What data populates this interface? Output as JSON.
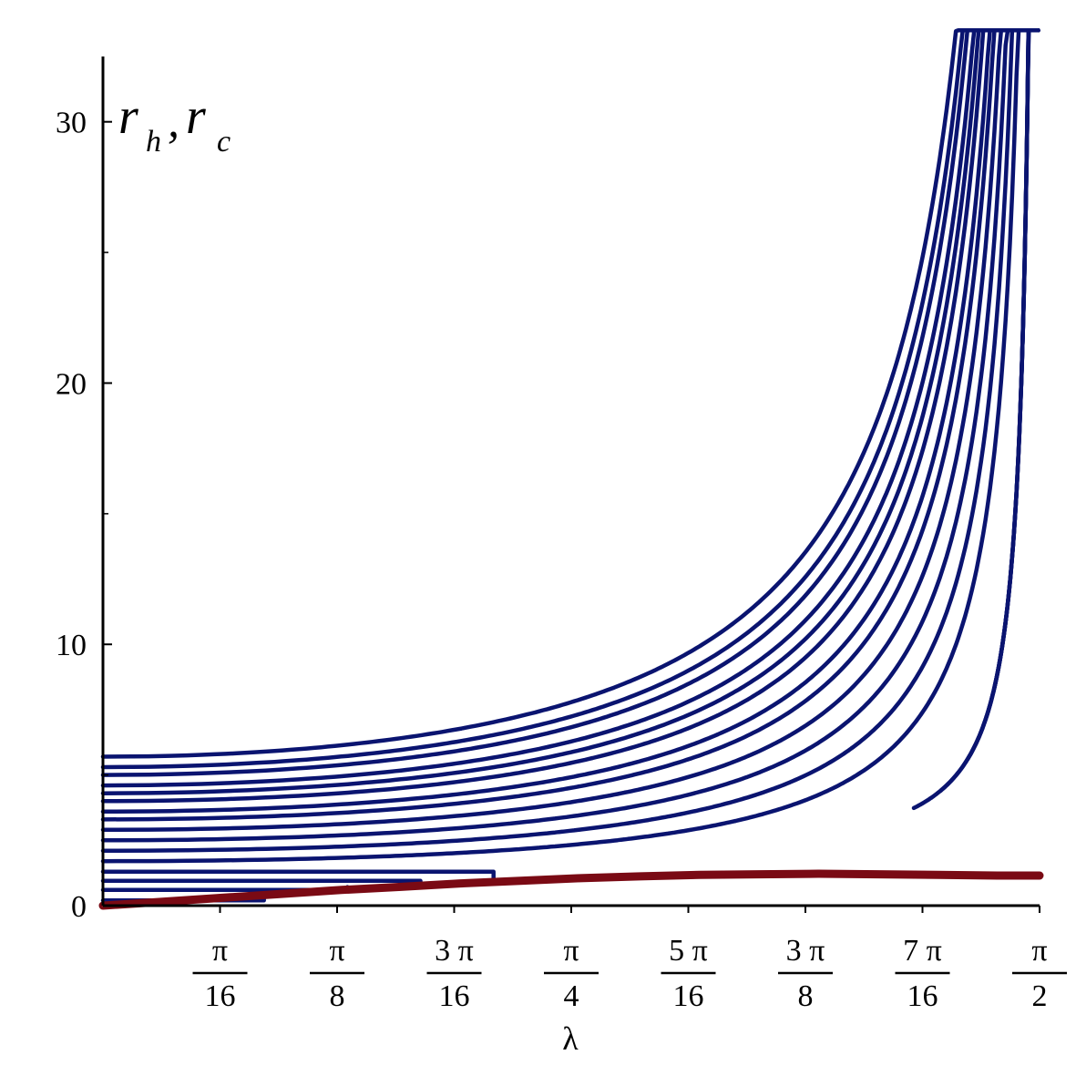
{
  "chart_data": {
    "type": "line",
    "xlabel": "λ",
    "ylabel_main": "r",
    "ylabel_sub1": "h",
    "ylabel_sep": ",",
    "ylabel_sub2": "c",
    "xlim": [
      0,
      1.5708
    ],
    "ylim": [
      0,
      32.5
    ],
    "grid": false,
    "y_ticks": [
      {
        "value": 0,
        "label": "0"
      },
      {
        "value": 10,
        "label": "10"
      },
      {
        "value": 20,
        "label": "20"
      },
      {
        "value": 30,
        "label": "30"
      }
    ],
    "y_minor_ticks": [
      5,
      15,
      25
    ],
    "x_ticks": [
      {
        "value": 0.19635,
        "num": "π",
        "den": "16"
      },
      {
        "value": 0.3927,
        "num": "π",
        "den": "8"
      },
      {
        "value": 0.58905,
        "num": "3 π",
        "den": "16"
      },
      {
        "value": 0.7854,
        "num": "π",
        "den": "4"
      },
      {
        "value": 0.98175,
        "num": "5 π",
        "den": "16"
      },
      {
        "value": 1.1781,
        "num": "3 π",
        "den": "8"
      },
      {
        "value": 1.37445,
        "num": "7 π",
        "den": "16"
      },
      {
        "value": 1.5708,
        "num": "π",
        "den": "2"
      }
    ],
    "colors": {
      "rh": "#0a1470",
      "rc": "#7a0a14",
      "axis": "#000000"
    },
    "rh_levels": [
      0.2,
      0.6,
      0.95,
      1.3,
      1.7,
      2.1,
      2.5,
      2.9,
      3.3,
      3.6,
      4.0,
      4.3,
      4.6,
      5.0,
      5.3,
      5.7
    ],
    "rh_rc_curve": [
      {
        "x": 0.0,
        "y": 0.0
      },
      {
        "x": 0.1,
        "y": 0.15
      },
      {
        "x": 0.2,
        "y": 0.3
      },
      {
        "x": 0.3,
        "y": 0.45
      },
      {
        "x": 0.4,
        "y": 0.6
      },
      {
        "x": 0.5,
        "y": 0.72
      },
      {
        "x": 0.6,
        "y": 0.85
      },
      {
        "x": 0.7,
        "y": 0.95
      },
      {
        "x": 0.8,
        "y": 1.05
      },
      {
        "x": 0.9,
        "y": 1.12
      },
      {
        "x": 1.0,
        "y": 1.18
      },
      {
        "x": 1.1,
        "y": 1.2
      },
      {
        "x": 1.2,
        "y": 1.22
      },
      {
        "x": 1.3,
        "y": 1.2
      },
      {
        "x": 1.4,
        "y": 1.18
      },
      {
        "x": 1.5,
        "y": 1.15
      },
      {
        "x": 1.5708,
        "y": 1.15
      }
    ]
  }
}
